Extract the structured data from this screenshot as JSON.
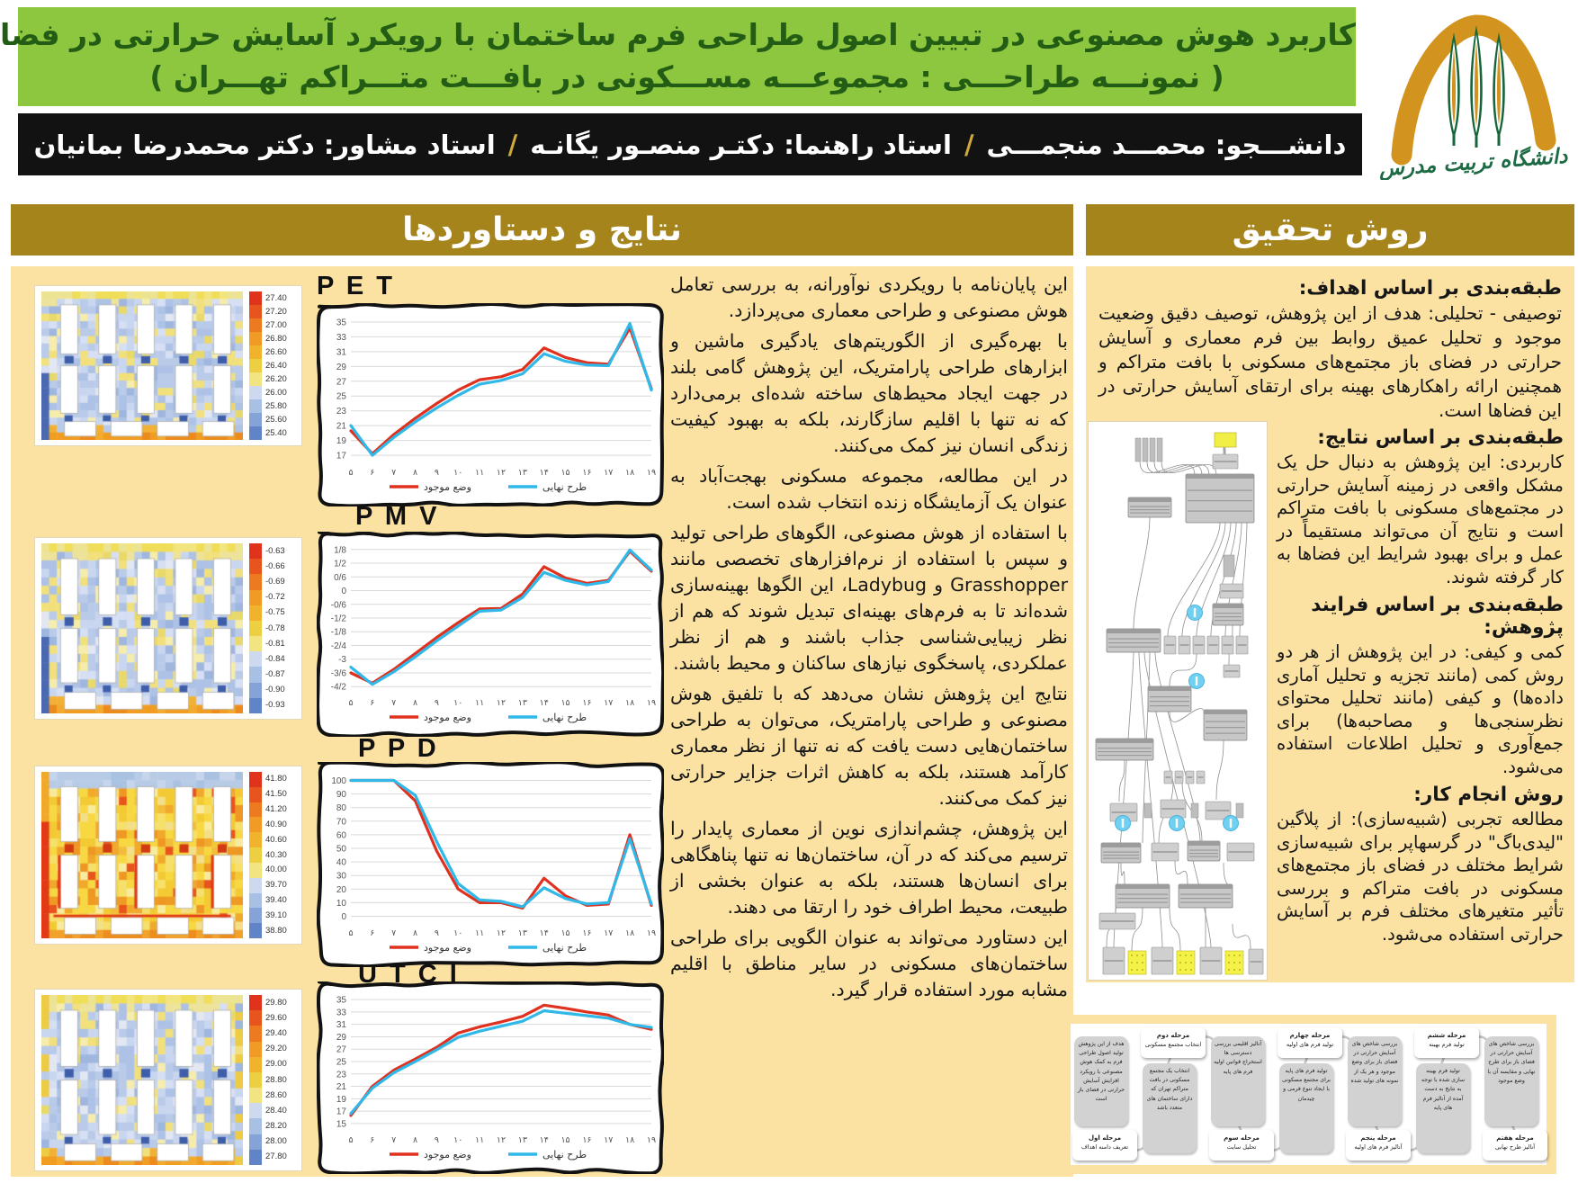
{
  "header": {
    "title_line1": "کاربرد هوش مصنوعی در تبیین اصول طراحی فرم ساختمان با رویکرد آسایش حرارتی در فضای باز",
    "title_line2": "( نمونـــه طراحـــی : مجموعـــه مســـکونی در بافـــت متـــراکم تهـــران )",
    "authors": {
      "segments": [
        "دانشـــجو: محمـــد منجمـــی",
        "استاد راهنما: دکتـر منصـور یگانـه",
        "استاد مشاور: دکتر محمدرضا بمانیان"
      ],
      "separator": "/"
    },
    "logo_caption": "دانشگاه تربیت مدرس"
  },
  "left_section": {
    "title": "نتایج و دستاوردها",
    "paragraphs": [
      "این پایان‌نامه با رویکردی نوآورانه، به بررسی تعامل هوش مصنوعی و طراحی معماری می‌پردازد.",
      "با بهره‌گیری از الگوریتم‌های یادگیری ماشین و ابزارهای طراحی پارامتریک، این پژوهش گامی بلند در جهت ایجاد محیط‌های ساخته شده‌ای برمی‌دارد که نه تنها با اقلیم سازگارند، بلکه به بهبود کیفیت زندگی انسان نیز کمک می‌کنند.",
      "در این مطالعه، مجموعه مسکونی بهجت‌آباد به عنوان یک آزمایشگاه زنده انتخاب شده است.",
      "با استفاده از هوش مصنوعی، الگوهای طراحی تولید و سپس با استفاده از نرم‌افزارهای تخصصی مانند Grasshopper و Ladybug، این الگوها بهینه‌سازی شده‌اند تا به فرم‌های بهینه‌ای تبدیل شوند که هم از نظر زیبایی‌شناسی جذاب باشند و هم از نظر عملکردی، پاسخگوی نیازهای ساکنان و محیط باشند.",
      "نتایج این پژوهش نشان می‌دهد که با تلفیق هوش مصنوعی و طراحی پارامتریک، می‌توان به طراحی ساختمان‌هایی دست یافت که نه تنها از نظر معماری کارآمد هستند، بلکه به کاهش اثرات جزایر حرارتی نیز کمک می‌کنند.",
      "این پژوهش، چشم‌اندازی نوین از معماری پایدار را ترسیم می‌کند که در آن، ساختمان‌ها نه تنها پناهگاهی برای انسان‌ها هستند، بلکه به عنوان بخشی از طبیعت، محیط اطراف خود را ارتقا می دهند.",
      "این دستاورد می‌تواند به عنوان الگویی برای طراحی ساختمان‌های مسکونی در سایر مناطق با اقلیم مشابه مورد استفاده قرار گیرد."
    ]
  },
  "right_section": {
    "title": "روش تحقیق",
    "blocks": [
      {
        "heading": "طبقه‌بندی بر اساس اهداف:",
        "body": "توصیفی - تحلیلی: هدف از این پژوهش، توصیف دقیق وضعیت موجود و تحلیل عمیق روابط بین فرم معماری و آسایش حرارتی در فضای باز مجتمع‌های مسکونی با بافت متراکم و همچنین ارائه راهکارهای بهینه برای ارتقای آسایش حرارتی در این فضاها است."
      },
      {
        "heading": "طبقه‌بندی بر اساس نتایج:",
        "body": "کاربردی: این پژوهش به دنبال حل یک مشکل واقعی در زمینه آسایش حرارتی در مجتمع‌های مسکونی با بافت متراکم است و نتایج آن می‌تواند مستقیماً در عمل و برای بهبود شرایط این فضاها به کار گرفته شوند."
      },
      {
        "heading": "طبقه‌بندی بر اساس فرایند پژوهش:",
        "body": "کمی و کیفی: در این پژوهش از هر دو روش کمی (مانند تجزیه و تحلیل آماری داده‌ها) و کیفی (مانند تحلیل محتوای نظرسنجی‌ها و مصاحبه‌ها) برای جمع‌آوری و تحلیل اطلاعات استفاده می‌شود."
      },
      {
        "heading": "روش انجام کار:",
        "body": "مطالعه تجربی (شبیه‌سازی): از پلاگین \"لیدی‌باگ\" در گرسهاپر برای شبیه‌سازی شرایط مختلف در فضای باز مجتمع‌های مسکونی در بافت متراکم و بررسی تأثیر متغیرهای مختلف فرم بر آسایش حرارتی استفاده می‌شود."
      }
    ],
    "diagram_kind": "grasshopper-node-network"
  },
  "flowchart": {
    "stages": [
      {
        "label_title": "مرحله اول",
        "label_sub": "تعریف دامنه اهداف",
        "body": "هدف از این پژوهش تولید اصول طراحی فرم به کمک هوش مصنوعی با رویکرد افزایش آسایش حرارتی در فضای باز است"
      },
      {
        "label_title": "مرحله دوم",
        "label_sub": "انتخاب مجتمع مسکونی",
        "body": "انتخاب یک مجتمع مسکونی در بافت متراکم تهران که دارای ساختمان های متعدد باشد"
      },
      {
        "label_title": "مرحله سوم",
        "label_sub": "تحلیل سایت",
        "body": "آنالیز اقلیمی بررسی دسترسی ها استخراج قوانین اولیه فرم های پایه"
      },
      {
        "label_title": "مرحله چهارم",
        "label_sub": "تولید فرم های اولیه",
        "body": "تولید فرم های پایه برای مجتمع مسکونی با ایجاد تنوع فرمی و چیدمان"
      },
      {
        "label_title": "مرحله پنجم",
        "label_sub": "آنالیز فرم های اولیه",
        "body": "بررسی شاخص های آسایش حرارتی در فضای باز برای وضع موجود و هر یک از نمونه های تولید شده"
      },
      {
        "label_title": "مرحله ششم",
        "label_sub": "تولید فرم بهینه",
        "body": "تولید فرم بهینه سازی شده با توجه به نتایج به دست آمده از آنالیز فرم های پایه"
      },
      {
        "label_title": "مرحله هفتم",
        "label_sub": "آنالیز طرح نهایی",
        "body": "بررسی شاخص های آسایش حرارتی در فضای باز برای طرح نهایی و مقایسه آن با وضع موجود"
      }
    ]
  },
  "chart_data": [
    {
      "type": "line",
      "title": "P E T",
      "x_labels": [
        "۵",
        "۶",
        "۷",
        "۸",
        "۹",
        "۱۰",
        "۱۱",
        "۱۲",
        "۱۳",
        "۱۴",
        "۱۵",
        "۱۶",
        "۱۷",
        "۱۸",
        "۱۹"
      ],
      "x_values": [
        5,
        6,
        7,
        8,
        9,
        10,
        11,
        12,
        13,
        14,
        15,
        16,
        17,
        18,
        19
      ],
      "y_tick_labels": [
        "35",
        "33",
        "31",
        "29",
        "27",
        "25",
        "23",
        "21",
        "19",
        "17"
      ],
      "y_tick_values": [
        35,
        33,
        31,
        29,
        27,
        25,
        23,
        21,
        19,
        17
      ],
      "ylim": [
        16.4,
        35.6
      ],
      "series": [
        {
          "name": "وضع موجود",
          "color": "#e0301e",
          "values": [
            20.3,
            17.2,
            19.8,
            22.0,
            24.0,
            25.8,
            27.2,
            27.6,
            28.6,
            31.5,
            30.2,
            29.5,
            29.3,
            34.2,
            26.0
          ]
        },
        {
          "name": "طرح نهایی",
          "color": "#2fb8e8",
          "values": [
            21.0,
            17.0,
            19.4,
            21.5,
            23.4,
            25.1,
            26.6,
            27.1,
            28.0,
            30.7,
            29.7,
            29.2,
            29.1,
            34.8,
            25.8
          ]
        }
      ],
      "colorbar_ticks": [
        "27.40",
        "27.20",
        "27.00",
        "26.80",
        "26.60",
        "26.40",
        "26.20",
        "26.00",
        "25.80",
        "25.60",
        "25.40"
      ],
      "heatmap_style": "pet"
    },
    {
      "type": "line",
      "title": "P M V",
      "x_labels": [
        "۵",
        "۶",
        "۷",
        "۸",
        "۹",
        "۱۰",
        "۱۱",
        "۱۲",
        "۱۳",
        "۱۴",
        "۱۵",
        "۱۶",
        "۱۷",
        "۱۸",
        "۱۹"
      ],
      "x_values": [
        5,
        6,
        7,
        8,
        9,
        10,
        11,
        12,
        13,
        14,
        15,
        16,
        17,
        18,
        19
      ],
      "y_tick_labels": [
        "1/8",
        "1/2",
        "0/6",
        "0",
        "-0/6",
        "-1/2",
        "-1/8",
        "-2/4",
        "-3",
        "-3/6",
        "-4/2"
      ],
      "y_tick_values": [
        1.8,
        1.2,
        0.6,
        0,
        -0.6,
        -1.2,
        -1.8,
        -2.4,
        -3,
        -3.6,
        -4.2
      ],
      "ylim": [
        -4.35,
        1.95
      ],
      "series": [
        {
          "name": "وضع موجود",
          "color": "#e0301e",
          "values": [
            -3.6,
            -4.05,
            -3.45,
            -2.75,
            -2.05,
            -1.4,
            -0.8,
            -0.78,
            -0.15,
            1.05,
            0.55,
            0.32,
            0.45,
            1.72,
            0.85
          ]
        },
        {
          "name": "طرح نهایی",
          "color": "#2fb8e8",
          "values": [
            -3.35,
            -4.1,
            -3.55,
            -2.9,
            -2.2,
            -1.55,
            -0.9,
            -0.85,
            -0.3,
            0.8,
            0.45,
            0.25,
            0.4,
            1.78,
            0.9
          ]
        }
      ],
      "colorbar_ticks": [
        "-0.63",
        "-0.66",
        "-0.69",
        "-0.72",
        "-0.75",
        "-0.78",
        "-0.81",
        "-0.84",
        "-0.87",
        "-0.90",
        "-0.93"
      ],
      "heatmap_style": "pmv"
    },
    {
      "type": "line",
      "title": "P P D",
      "x_labels": [
        "۵",
        "۶",
        "۷",
        "۸",
        "۹",
        "۱۰",
        "۱۱",
        "۱۲",
        "۱۳",
        "۱۴",
        "۱۵",
        "۱۶",
        "۱۷",
        "۱۸",
        "۱۹"
      ],
      "x_values": [
        5,
        6,
        7,
        8,
        9,
        10,
        11,
        12,
        13,
        14,
        15,
        16,
        17,
        18,
        19
      ],
      "y_tick_labels": [
        "100",
        "90",
        "80",
        "70",
        "60",
        "50",
        "40",
        "30",
        "20",
        "10",
        "0"
      ],
      "y_tick_values": [
        100,
        90,
        80,
        70,
        60,
        50,
        40,
        30,
        20,
        10,
        0
      ],
      "ylim": [
        -3,
        103
      ],
      "series": [
        {
          "name": "وضع موجود",
          "color": "#e0301e",
          "values": [
            100,
            100,
            100,
            85,
            48,
            20,
            10,
            10,
            6,
            28,
            15,
            8,
            9,
            60,
            8
          ]
        },
        {
          "name": "طرح نهایی",
          "color": "#2fb8e8",
          "values": [
            100,
            100,
            100,
            89,
            55,
            24,
            12,
            11,
            7,
            21,
            13,
            9,
            10,
            57,
            9
          ]
        }
      ],
      "colorbar_ticks": [
        "41.80",
        "41.50",
        "41.20",
        "40.90",
        "40.60",
        "40.30",
        "40.00",
        "39.70",
        "39.40",
        "39.10",
        "38.80"
      ],
      "heatmap_style": "ppd"
    },
    {
      "type": "line",
      "title": "U T C I",
      "x_labels": [
        "۵",
        "۶",
        "۷",
        "۸",
        "۹",
        "۱۰",
        "۱۱",
        "۱۲",
        "۱۳",
        "۱۴",
        "۱۵",
        "۱۶",
        "۱۷",
        "۱۸",
        "۱۹"
      ],
      "x_values": [
        5,
        6,
        7,
        8,
        9,
        10,
        11,
        12,
        13,
        14,
        15,
        16,
        17,
        18,
        19
      ],
      "y_tick_labels": [
        "35",
        "33",
        "31",
        "29",
        "27",
        "25",
        "23",
        "21",
        "19",
        "17",
        "15"
      ],
      "y_tick_values": [
        35,
        33,
        31,
        29,
        27,
        25,
        23,
        21,
        19,
        17,
        15
      ],
      "ylim": [
        14.4,
        35.6
      ],
      "series": [
        {
          "name": "وضع موجود",
          "color": "#e0301e",
          "values": [
            16.3,
            21.0,
            23.6,
            25.4,
            27.3,
            29.6,
            30.6,
            31.4,
            32.3,
            34.1,
            33.6,
            33.0,
            32.5,
            31.0,
            30.2
          ]
        },
        {
          "name": "طرح نهایی",
          "color": "#2fb8e8",
          "values": [
            16.6,
            20.7,
            23.2,
            25.0,
            26.9,
            28.9,
            29.9,
            30.7,
            31.5,
            33.2,
            32.8,
            32.4,
            32.0,
            31.0,
            30.5
          ]
        }
      ],
      "colorbar_ticks": [
        "29.80",
        "29.60",
        "29.40",
        "29.20",
        "29.00",
        "28.80",
        "28.60",
        "28.40",
        "28.20",
        "28.00",
        "27.80"
      ],
      "heatmap_style": "utci"
    }
  ],
  "colors": {
    "header_green": "#8dc63f",
    "header_green_text": "#235c14",
    "authors_bar_bg": "#121212",
    "separator_gold": "#cfa93a",
    "section_bar_gold": "#a5841b",
    "panel_yellow": "#fbe2a2",
    "series_existing_red": "#e0301e",
    "series_final_cyan": "#2fb8e8",
    "logo_orange": "#d3941f",
    "logo_green": "#17663b",
    "colorbar_palette": [
      "#e0331b",
      "#e7541d",
      "#ee7a20",
      "#f29a26",
      "#f1b32d",
      "#edcf43",
      "#f2e480",
      "#ccd9ee",
      "#a9c0e5",
      "#86a3d8",
      "#6184c6"
    ]
  }
}
